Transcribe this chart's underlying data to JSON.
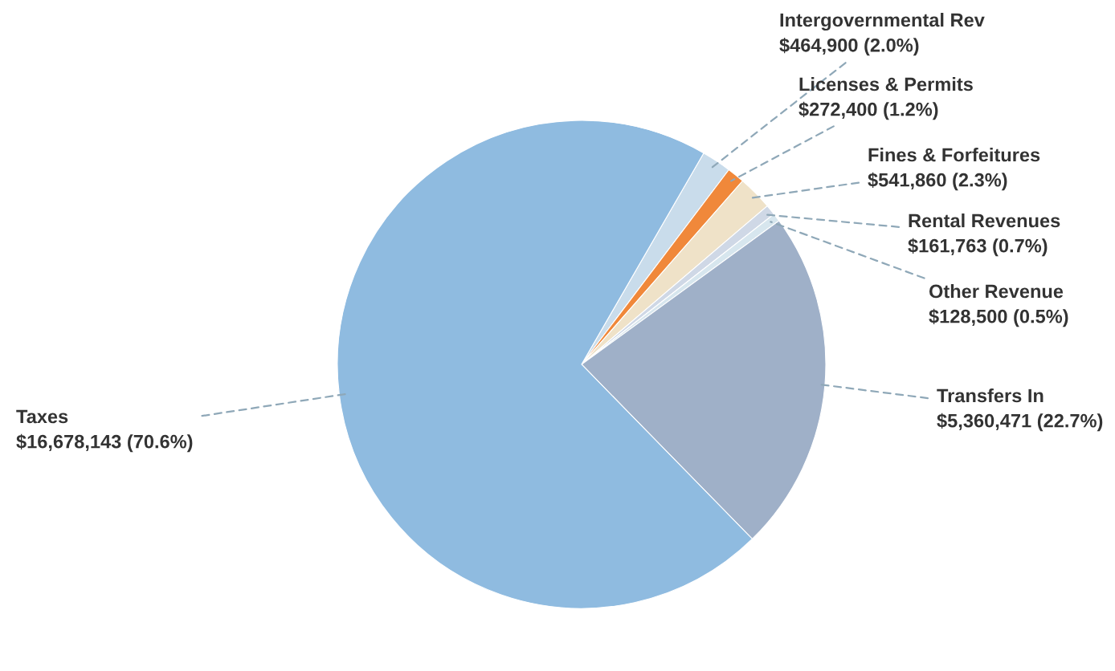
{
  "chart_data": {
    "type": "pie",
    "categories": [
      "Intergovernmental Rev",
      "Licenses & Permits",
      "Fines & Forfeitures",
      "Rental Revenues",
      "Other Revenue",
      "Transfers In",
      "Taxes"
    ],
    "values": [
      464900,
      272400,
      541860,
      161763,
      128500,
      5360471,
      16678143
    ],
    "value_labels": [
      "$464,900 (2.0%)",
      "$272,400 (1.2%)",
      "$541,860 (2.3%)",
      "$161,763 (0.7%)",
      "$128,500 (0.5%)",
      "$5,360,471 (22.7%)",
      "$16,678,143 (70.6%)"
    ],
    "colors": [
      "#c9dceb",
      "#f0883a",
      "#efe2c8",
      "#cfd8e6",
      "#d7e6ee",
      "#9fb0c8",
      "#8fbbe0"
    ]
  }
}
